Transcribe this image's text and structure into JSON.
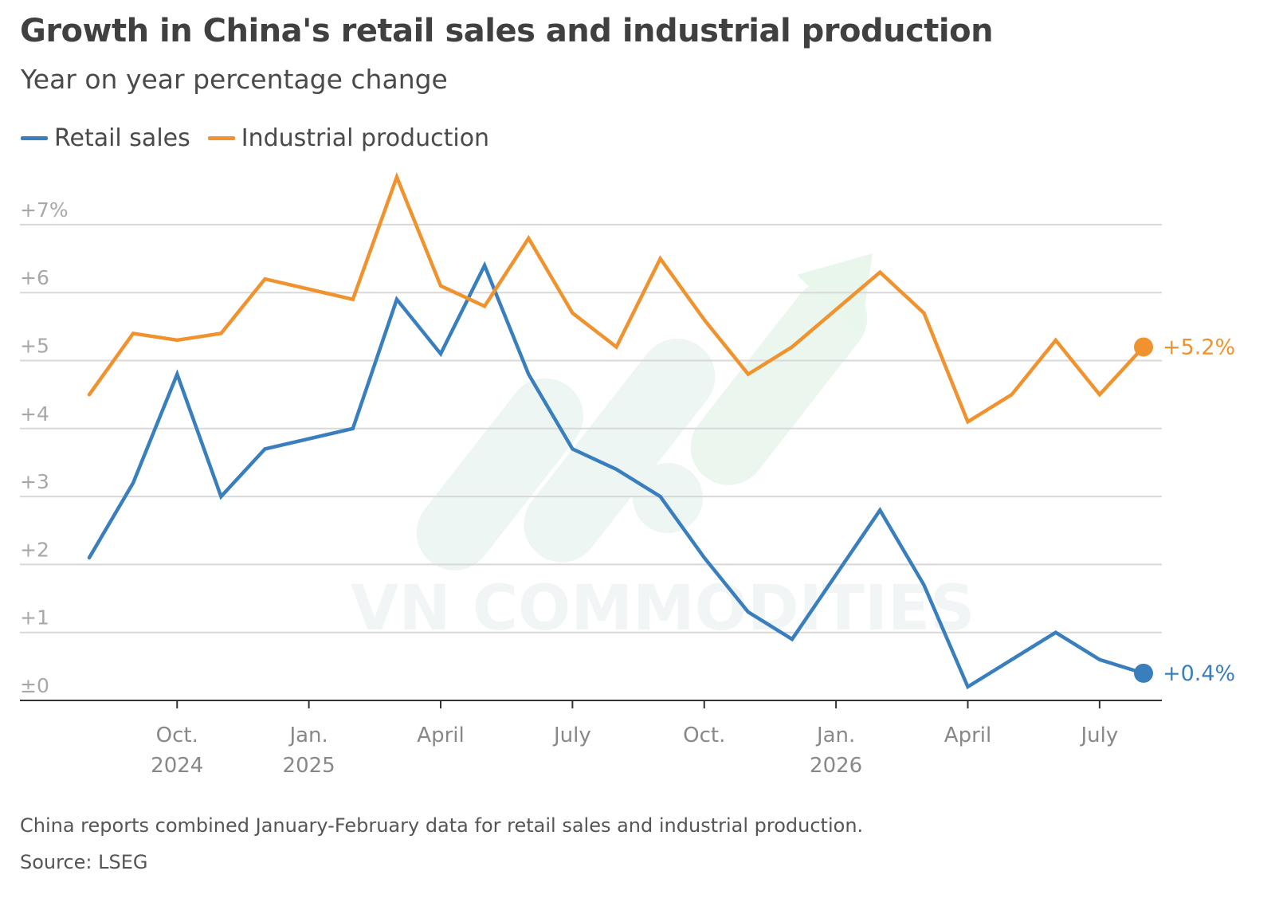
{
  "title": "Growth in China's retail sales and industrial production",
  "subtitle": "Year on year percentage change",
  "note": "China reports combined January-February data for retail sales and industrial production.",
  "source": "Source: LSEG",
  "watermark": "VN COMMODITIES",
  "colors": {
    "retail": "#3a7fbd",
    "industrial": "#f0922e",
    "grid": "#d8d8d8",
    "axis": "#333333"
  },
  "chart_data": {
    "type": "line",
    "title": "Growth in China's retail sales and industrial production",
    "subtitle": "Year on year percentage change",
    "ylim": [
      0,
      7.2
    ],
    "grid": true,
    "legend_position": "top-left",
    "y_ticks": [
      {
        "value": 7,
        "label": "+7%"
      },
      {
        "value": 6,
        "label": "+6"
      },
      {
        "value": 5,
        "label": "+5"
      },
      {
        "value": 4,
        "label": "+4"
      },
      {
        "value": 3,
        "label": "+3"
      },
      {
        "value": 2,
        "label": "+2"
      },
      {
        "value": 1,
        "label": "+1"
      },
      {
        "value": 0,
        "label": "±0"
      }
    ],
    "x_ticks": [
      {
        "date": "2024-10",
        "line1": "Oct.",
        "line2": "2024"
      },
      {
        "date": "2025-01",
        "line1": "Jan.",
        "line2": "2025"
      },
      {
        "date": "2025-04",
        "line1": "April",
        "line2": ""
      },
      {
        "date": "2025-07",
        "line1": "July",
        "line2": ""
      },
      {
        "date": "2025-10",
        "line1": "Oct.",
        "line2": ""
      },
      {
        "date": "2026-01",
        "line1": "Jan.",
        "line2": "2026"
      },
      {
        "date": "2026-04",
        "line1": "April",
        "line2": ""
      },
      {
        "date": "2026-07",
        "line1": "July",
        "line2": ""
      }
    ],
    "x": [
      "2024-08",
      "2024-09",
      "2024-10",
      "2024-11",
      "2024-12",
      "2025-02",
      "2025-03",
      "2025-04",
      "2025-05",
      "2025-06",
      "2025-07",
      "2025-08",
      "2025-09",
      "2025-10",
      "2025-11",
      "2025-12",
      "2026-02",
      "2026-03",
      "2026-04",
      "2026-05",
      "2026-06",
      "2026-07",
      "2026-08"
    ],
    "series": [
      {
        "name": "Retail sales",
        "key": "retail",
        "values": [
          2.1,
          3.2,
          4.8,
          3.0,
          3.7,
          4.0,
          5.9,
          5.1,
          6.4,
          4.8,
          3.7,
          3.4,
          3.0,
          2.1,
          1.3,
          0.9,
          2.8,
          1.7,
          0.2,
          0.6,
          1.0,
          0.6,
          0.4
        ],
        "end_label": "+0.4%"
      },
      {
        "name": "Industrial production",
        "key": "industrial",
        "values": [
          4.5,
          5.4,
          5.3,
          5.4,
          6.2,
          5.9,
          7.7,
          6.1,
          5.8,
          6.8,
          5.7,
          5.2,
          6.5,
          5.6,
          4.8,
          5.2,
          6.3,
          5.7,
          4.1,
          4.5,
          5.3,
          4.5,
          5.2
        ],
        "end_label": "+5.2%"
      }
    ]
  }
}
